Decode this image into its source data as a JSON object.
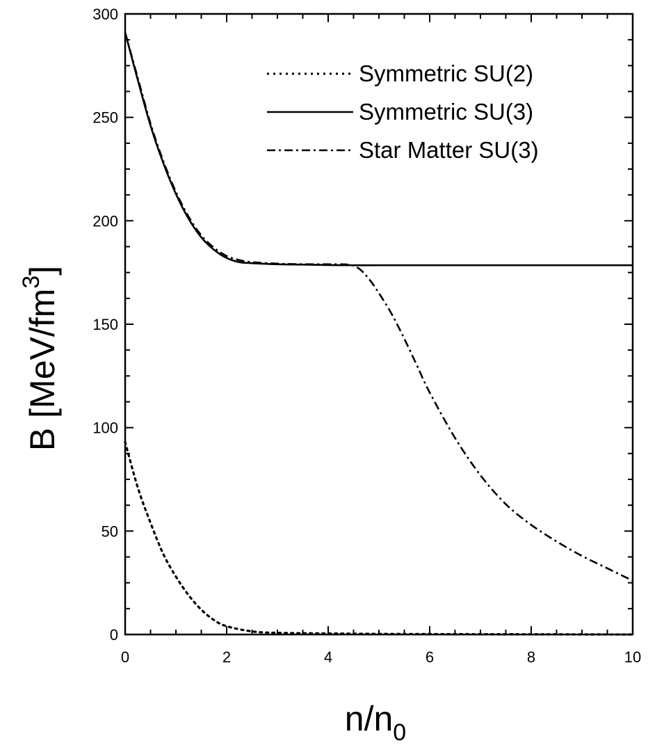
{
  "chart_data": {
    "type": "line",
    "title": "",
    "xlabel": {
      "main": "n/n",
      "subscript": "0"
    },
    "ylabel": {
      "main": "B [MeV/fm",
      "superscript": "3",
      "close": "]"
    },
    "xlim": [
      0,
      10
    ],
    "ylim": [
      0,
      300
    ],
    "x_ticks": [
      0,
      2,
      4,
      6,
      8,
      10
    ],
    "y_ticks": [
      0,
      50,
      100,
      150,
      200,
      250,
      300
    ],
    "grid": false,
    "legend_position": "top-right",
    "series": [
      {
        "name": "Symmetric SU(2)",
        "style": "dotted",
        "color": "#000000",
        "x": [
          0,
          0.25,
          0.5,
          0.75,
          1.0,
          1.25,
          1.5,
          1.75,
          2.0,
          2.5,
          3.0,
          4.0,
          5.0,
          6.0,
          8.0,
          10.0
        ],
        "y": [
          93,
          71,
          54,
          39,
          28,
          19,
          12,
          7,
          4,
          1.5,
          0.8,
          0.5,
          0.3,
          0.2,
          0.1,
          0
        ]
      },
      {
        "name": "Symmetric SU(3)",
        "style": "solid",
        "color": "#000000",
        "x": [
          0,
          0.25,
          0.5,
          0.75,
          1.0,
          1.25,
          1.5,
          1.75,
          2.0,
          2.25,
          2.5,
          3.0,
          3.5,
          4.0,
          4.5,
          5.0,
          6.0,
          7.0,
          8.0,
          9.0,
          10.0
        ],
        "y": [
          291,
          268,
          246,
          228,
          213,
          201,
          192,
          186,
          182,
          180,
          179.5,
          179,
          178.8,
          178.6,
          178.5,
          178.5,
          178.5,
          178.5,
          178.5,
          178.5,
          178.5
        ]
      },
      {
        "name": "Star Matter SU(3)",
        "style": "dash-dot",
        "color": "#000000",
        "x": [
          0,
          0.25,
          0.5,
          0.75,
          1.0,
          1.25,
          1.5,
          1.75,
          2.0,
          2.25,
          2.5,
          3.0,
          3.5,
          4.0,
          4.4,
          4.6,
          4.8,
          5.0,
          5.25,
          5.5,
          5.75,
          6.0,
          6.5,
          7.0,
          7.5,
          8.0,
          8.5,
          9.0,
          9.5,
          10.0
        ],
        "y": [
          291,
          269,
          247,
          229,
          214,
          202,
          193,
          187,
          183,
          181,
          180,
          179.3,
          179,
          179,
          178.8,
          177,
          172,
          165,
          155,
          143,
          130,
          117,
          95,
          77,
          63,
          53,
          45,
          38,
          32,
          26
        ]
      }
    ]
  }
}
